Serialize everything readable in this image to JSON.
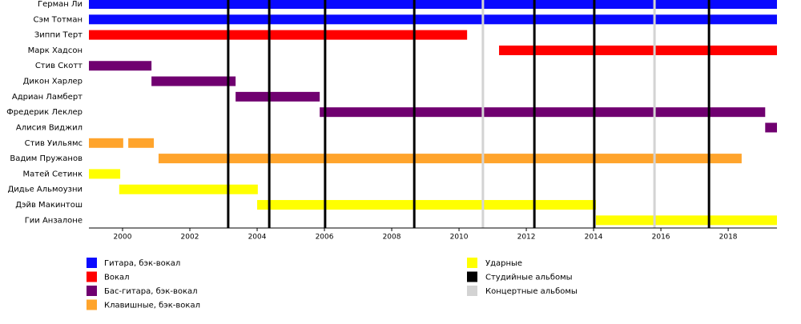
{
  "chart_data": {
    "type": "timeline",
    "categories": [
      "Герман Ли",
      "Сэм Тотман",
      "Зиппи Терт",
      "Марк Хадсон",
      "Стив Скотт",
      "Дикон Харлер",
      "Адриан Ламберт",
      "Фредерик Леклер",
      "Алисия Виджил",
      "Стив Уильямс",
      "Вадим Пружанов",
      "Матей Сетинк",
      "Дидье Альмоузни",
      "Дэйв Макинтош",
      "Гии Анзалоне"
    ],
    "xlim": [
      1999,
      2019.45
    ],
    "xticks": [
      2000,
      2002,
      2004,
      2006,
      2008,
      2010,
      2012,
      2014,
      2016,
      2018
    ],
    "series": [
      {
        "name": "Гитара, бэк-вокал",
        "color": "#0a0aff",
        "values": [
          [
            [
              1999,
              2019.45
            ]
          ],
          [
            [
              1999,
              2019.45
            ]
          ],
          null,
          null,
          null,
          null,
          null,
          null,
          null,
          null,
          null,
          null,
          null,
          null,
          null
        ]
      },
      {
        "name": "Вокал",
        "color": "#ff0000",
        "values": [
          null,
          null,
          [
            [
              1999,
              2010.24
            ]
          ],
          [
            [
              2011.19,
              2019.45
            ]
          ],
          null,
          null,
          null,
          null,
          null,
          null,
          null,
          null,
          null,
          null,
          null
        ]
      },
      {
        "name": "Бас-гитара, бэк-вокал",
        "color": "#700070",
        "values": [
          null,
          null,
          null,
          null,
          [
            [
              1999,
              2000.86
            ]
          ],
          [
            [
              2000.86,
              2003.36
            ]
          ],
          [
            [
              2003.36,
              2005.86
            ]
          ],
          [
            [
              2005.86,
              2019.1
            ]
          ],
          [
            [
              2019.1,
              2019.45
            ]
          ],
          null,
          null,
          null,
          null,
          null,
          null
        ]
      },
      {
        "name": "Клавишные, бэк-вокал",
        "color": "#ffa42c",
        "values": [
          null,
          null,
          null,
          null,
          null,
          null,
          null,
          null,
          null,
          [
            [
              1999,
              2000.02
            ],
            [
              2000.17,
              2000.93
            ]
          ],
          [
            [
              2001.07,
              2018.4
            ]
          ],
          null,
          null,
          null,
          null
        ]
      },
      {
        "name": "Ударные",
        "color": "#ffff00",
        "values": [
          null,
          null,
          null,
          null,
          null,
          null,
          null,
          null,
          null,
          null,
          null,
          [
            [
              1999,
              1999.93
            ]
          ],
          [
            [
              1999.9,
              2004.02
            ]
          ],
          [
            [
              2004,
              2014.07
            ]
          ],
          [
            [
              2014.07,
              2019.45
            ]
          ]
        ]
      },
      {
        "name": "Студийные альбомы",
        "color": "#000000",
        "x": [
          2003.14,
          2004.36,
          2006.02,
          2008.67,
          2012.24,
          2014.02,
          2017.43
        ]
      },
      {
        "name": "Концертные альбомы",
        "color": "#d3d3d3",
        "x": [
          2010.71,
          2015.81
        ]
      }
    ]
  }
}
